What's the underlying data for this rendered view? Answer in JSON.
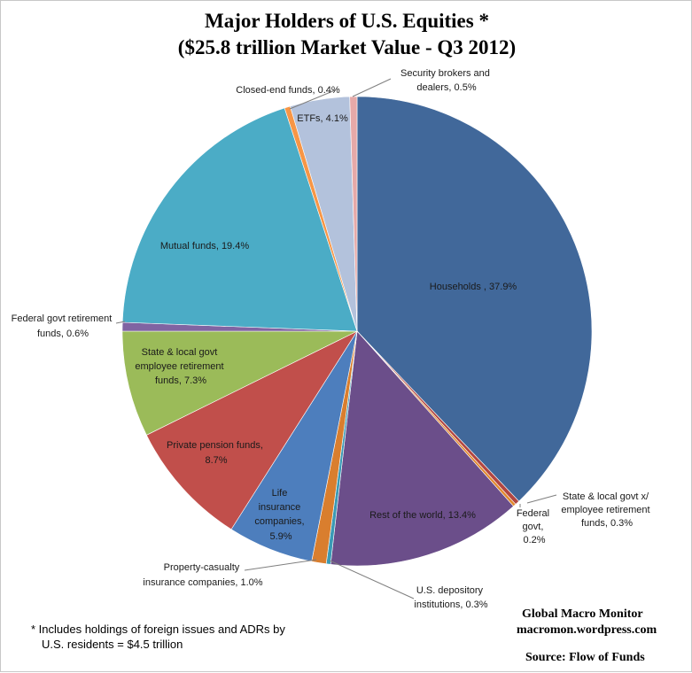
{
  "chart_data": {
    "type": "pie",
    "title": "Major Holders of U.S. Equities  *",
    "subtitle": "($25.8 trillion Market Value - Q3 2012)",
    "slices": [
      {
        "label": "Households , 37.9%",
        "value": 37.9,
        "color": "#41689a"
      },
      {
        "label": "State & local govt x/ employee retirement funds, 0.3%",
        "value": 0.3,
        "color": "#b24641"
      },
      {
        "label": "Federal govt, 0.2%",
        "value": 0.2,
        "color": "#e2892e"
      },
      {
        "label": "Rest of the world, 13.4%",
        "value": 13.4,
        "color": "#6b4e8a"
      },
      {
        "label": "U.S. depository institutions, 0.3%",
        "value": 0.3,
        "color": "#3a9ab5"
      },
      {
        "label": "Property-casualty insurance companies, 1.0%",
        "value": 1.0,
        "color": "#d97e2e"
      },
      {
        "label": "Life insurance companies, 5.9%",
        "value": 5.9,
        "color": "#4d7ebd"
      },
      {
        "label": "Private pension funds, 8.7%",
        "value": 8.7,
        "color": "#c14f4b"
      },
      {
        "label": "State & local govt employee retirement funds, 7.3%",
        "value": 7.3,
        "color": "#9bbb59"
      },
      {
        "label": "Federal govt retirement funds, 0.6%",
        "value": 0.6,
        "color": "#8064a2"
      },
      {
        "label": "Mutual funds, 19.4%",
        "value": 19.4,
        "color": "#4bacc6"
      },
      {
        "label": "Closed-end funds, 0.4%",
        "value": 0.4,
        "color": "#f79646"
      },
      {
        "label": "ETFs, 4.1%",
        "value": 4.1,
        "color": "#b3c2dc"
      },
      {
        "label": "Security brokers and dealers, 0.5%",
        "value": 0.5,
        "color": "#e6a9a8"
      }
    ]
  },
  "labels": {
    "households": "Households , 37.9%",
    "state_local_x": [
      "State & local govt x/",
      "employee retirement",
      "funds, 0.3%"
    ],
    "federal_govt": [
      "Federal",
      "govt,",
      "0.2%"
    ],
    "rest_of_world": "Rest of the world, 13.4%",
    "us_depository": [
      "U.S. depository",
      "institutions, 0.3%"
    ],
    "property_casualty": [
      "Property-casualty",
      "insurance companies, 1.0%"
    ],
    "life_insurance": [
      "Life",
      "insurance",
      "companies,",
      "5.9%"
    ],
    "private_pension": [
      "Private pension funds,",
      "8.7%"
    ],
    "state_local": [
      "State & local govt",
      "employee retirement",
      "funds, 7.3%"
    ],
    "federal_retirement": [
      "Federal govt retirement",
      "funds, 0.6%"
    ],
    "mutual_funds": "Mutual funds, 19.4%",
    "closed_end": "Closed-end funds, 0.4%",
    "etfs": "ETFs, 4.1%",
    "security_brokers": [
      "Security brokers and",
      "dealers, 0.5%"
    ]
  },
  "footnote": {
    "line1": "* Includes holdings of foreign issues and ADRs by",
    "line2": "U.S. residents  = $4.5  trillion"
  },
  "brand": {
    "line1": "Global Macro Monitor",
    "line2": "macromon.wordpress.com",
    "source": "Source:  Flow of Funds"
  }
}
